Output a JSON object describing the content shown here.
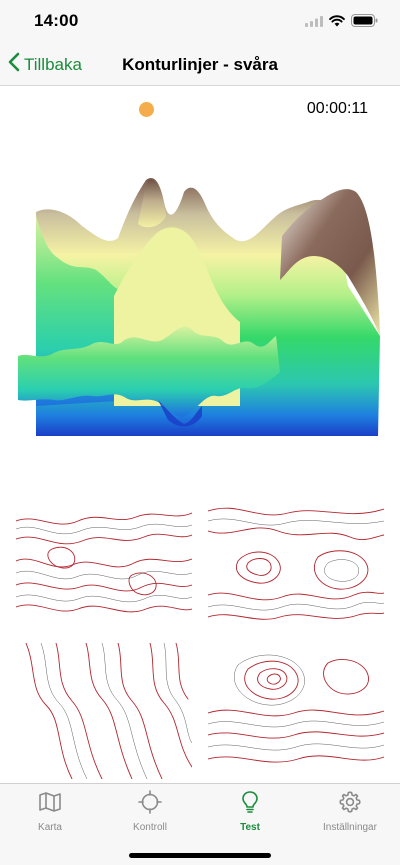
{
  "status_bar": {
    "time": "14:00",
    "icons": [
      "signal-icon",
      "wifi-icon",
      "battery-icon"
    ]
  },
  "nav": {
    "back_label": "Tillbaka",
    "title": "Konturlinjer - svåra"
  },
  "test": {
    "timer": "00:00:11",
    "status_color": "#f5ad4b",
    "answer_options": 4
  },
  "tabs": [
    {
      "label": "Karta",
      "icon": "map-icon",
      "active": false
    },
    {
      "label": "Kontroll",
      "icon": "crosshair-icon",
      "active": false
    },
    {
      "label": "Test",
      "icon": "lightbulb-icon",
      "active": true
    },
    {
      "label": "Inställningar",
      "icon": "gear-icon",
      "active": false
    }
  ],
  "colors": {
    "accent": "#1a8c3c",
    "contour_line": "#b3262f",
    "tab_inactive": "#8a8a8a"
  }
}
